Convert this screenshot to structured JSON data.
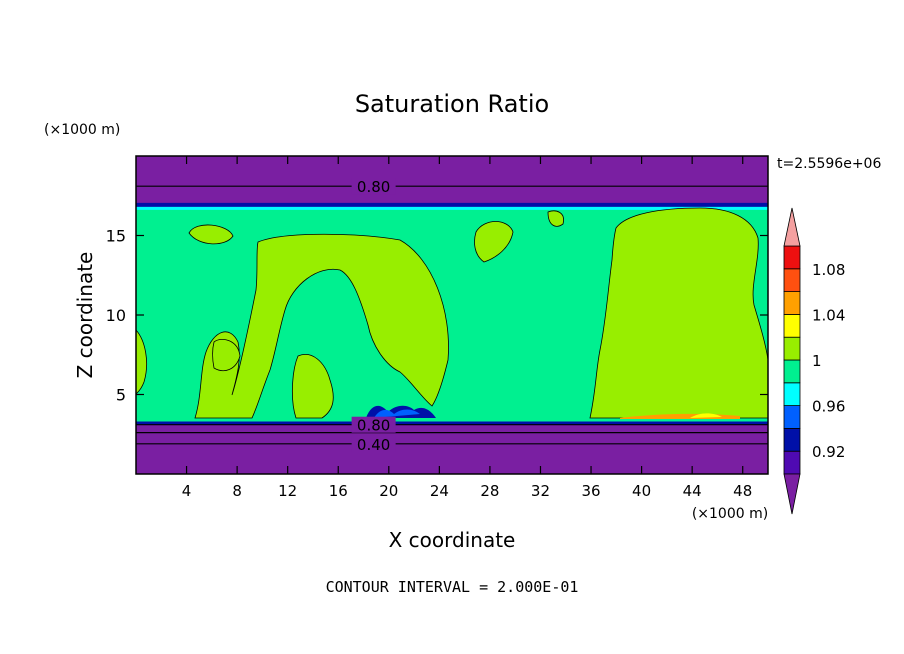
{
  "chart_data": {
    "type": "contour",
    "title": "Saturation Ratio",
    "xlabel": "X coordinate",
    "ylabel": "Z coordinate",
    "x_unit_label": "(×1000 m)",
    "y_unit_label": "(×1000 m)",
    "time_label": "t=2.5596e+06",
    "footer": "CONTOUR INTERVAL = 2.000E-01",
    "xlim": [
      0,
      50
    ],
    "ylim": [
      0,
      20
    ],
    "x_ticks": [
      4,
      8,
      12,
      16,
      20,
      24,
      28,
      32,
      36,
      40,
      44,
      48
    ],
    "y_ticks": [
      5,
      10,
      15
    ],
    "colorbar": {
      "levels": [
        0.9,
        0.92,
        0.94,
        0.96,
        0.98,
        1.0,
        1.02,
        1.04,
        1.06,
        1.08,
        1.1
      ],
      "tick_labels": [
        "0.92",
        "0.96",
        "1",
        "1.04",
        "1.08"
      ],
      "tick_values": [
        0.92,
        0.96,
        1.0,
        1.04,
        1.08
      ],
      "colors": [
        "#7a1fa2",
        "#4f0ab2",
        "#0010a8",
        "#0060ff",
        "#00ffff",
        "#00f090",
        "#98ee00",
        "#ffff00",
        "#ffa000",
        "#ff5010",
        "#ee1010",
        "#f4a0a0"
      ],
      "extend": "both"
    },
    "contour_labels": [
      {
        "text": "0.80",
        "x": 18.8,
        "z": 18.1
      },
      {
        "text": "0.80",
        "x": 18.8,
        "z": 3.1
      },
      {
        "text": "0.40",
        "x": 18.8,
        "z": 1.9
      }
    ],
    "regions": {
      "background_value": 0.99,
      "lower_boundary_z": 3.3,
      "upper_boundary_z": 16.8,
      "below_lower_value": 0.6,
      "above_upper_value": 0.7,
      "supersaturated_value": 1.01
    }
  }
}
